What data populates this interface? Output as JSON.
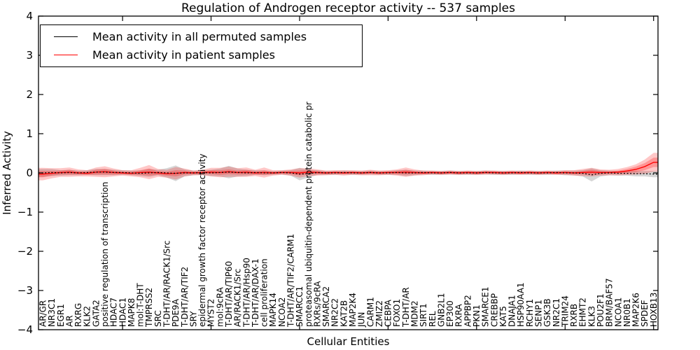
{
  "figure": {
    "title": "Regulation of Androgen receptor activity -- 537 samples",
    "xlabel": "Cellular Entities",
    "ylabel": "Inferred Activity"
  },
  "chart_data": {
    "type": "line",
    "title": "Regulation of Androgen receptor activity -- 537 samples",
    "xlabel": "Cellular Entities",
    "ylabel": "Inferred Activity",
    "ylim": [
      -4,
      4
    ],
    "yticks": [
      -4,
      -3,
      -2,
      -1,
      0,
      1,
      2,
      3,
      4
    ],
    "xticks_every": 10,
    "grid": false,
    "legend_position": "upper left",
    "categories": [
      "AR/GR",
      "NR3C1",
      "EGR1",
      "AR",
      "RXRG",
      "KLK2",
      "GATA2",
      "positive regulation of transcription",
      "HDAC7",
      "HDAC1",
      "MAPK8",
      "mol:T-DHT",
      "TMPRSS2",
      "SRC",
      "T-DHT/AR/RACK1/Src",
      "PDE9A",
      "T-DHT/AR/TIF2",
      "SRY",
      "epidermal growth factor receptor activity",
      "MYST2",
      "mol:9cRA",
      "T-DHT/AR/TIP60",
      "AR/RACK1/Src",
      "T-DHT/AR/Hsp90",
      "T-DHT/AR/DAX-1",
      "cell proliferation",
      "MAPK14",
      "NCOA2",
      "T-DHT/AR/TIF2/CARM1",
      "SMARCC1",
      "proteasomal ubiquitin-dependent protein catabolic pr",
      "RXRs/9cRA",
      "SMARCA2",
      "NR2C2",
      "KAT2B",
      "MAP2K4",
      "JUN",
      "CARM1",
      "ZMIZ2",
      "CEBPA",
      "FOXO1",
      "T-DHT/AR",
      "MDM2",
      "SIRT1",
      "REL",
      "GNB2L1",
      "EP300",
      "RXRA",
      "APPBP2",
      "PKN1",
      "SMARCE1",
      "CREBBP",
      "KAT5",
      "DNAJA1",
      "HSP90AA1",
      "RCHY1",
      "SENP1",
      "GSK3B",
      "NR2C1",
      "TRIM24",
      "RXRB",
      "EHMT2",
      "KLK3",
      "POU2F1",
      "BRM/BAF57",
      "NCOA1",
      "NR0B1",
      "MAP2K6",
      "SPDEF",
      "HOXB13"
    ],
    "series": [
      {
        "name": "Mean activity in all permuted samples",
        "color": "#000000",
        "line_style": "dotted",
        "values": [
          0,
          0.01,
          0,
          0.01,
          0,
          0.01,
          0.02,
          0.02,
          0.01,
          0.01,
          0,
          -0.01,
          0,
          0.01,
          0,
          -0.01,
          0,
          0,
          0.01,
          0,
          0.01,
          0.02,
          0.01,
          0,
          0.01,
          0,
          0,
          0.01,
          0,
          -0.03,
          -0.02,
          0.01,
          0,
          0,
          0.01,
          0,
          0,
          0.01,
          0,
          0,
          0.01,
          0,
          0,
          0.01,
          0,
          0,
          0.01,
          0,
          0,
          0,
          0.01,
          0,
          0,
          0,
          0.01,
          0,
          0,
          0,
          0.01,
          0,
          0,
          -0.01,
          -0.05,
          -0.01,
          0,
          -0.01,
          -0.01,
          -0.02,
          -0.02,
          -0.03
        ]
      },
      {
        "name": "Mean activity in patient samples",
        "color": "#ff0000",
        "line_style": "solid",
        "values": [
          -0.03,
          -0.01,
          0.01,
          0.02,
          0,
          -0.01,
          0.02,
          0.03,
          0.01,
          0,
          -0.01,
          0.01,
          0.02,
          0,
          -0.02,
          -0.01,
          0.01,
          0,
          0.01,
          0.02,
          0.01,
          0.03,
          0.01,
          0.02,
          0,
          0.01,
          0,
          0.01,
          0.01,
          0,
          0.02,
          0.01,
          0,
          0.01,
          0,
          0.01,
          0,
          0.01,
          0,
          0.01,
          0.01,
          0.02,
          0.01,
          0,
          0.01,
          0,
          0.01,
          0,
          0.01,
          0,
          0.01,
          0.01,
          0,
          0.01,
          0,
          0.01,
          0,
          0.01,
          0,
          0.01,
          0,
          0.01,
          0.02,
          0.01,
          0.01,
          0.02,
          0.05,
          0.09,
          0.16,
          0.27
        ]
      }
    ],
    "bands": [
      {
        "name": "permuted-sample-spread",
        "series": 0,
        "color": "rgba(120,120,120,0.30)",
        "halfwidths": [
          0.1,
          0.09,
          0.07,
          0.07,
          0.06,
          0.06,
          0.08,
          0.08,
          0.07,
          0.06,
          0.06,
          0.07,
          0.1,
          0.07,
          0.12,
          0.2,
          0.09,
          0.06,
          0.06,
          0.08,
          0.1,
          0.16,
          0.1,
          0.08,
          0.06,
          0.06,
          0.05,
          0.05,
          0.07,
          0.16,
          0.1,
          0.06,
          0.05,
          0.05,
          0.05,
          0.05,
          0.05,
          0.05,
          0.05,
          0.05,
          0.06,
          0.08,
          0.06,
          0.05,
          0.05,
          0.05,
          0.05,
          0.05,
          0.05,
          0.05,
          0.05,
          0.05,
          0.05,
          0.05,
          0.05,
          0.05,
          0.05,
          0.05,
          0.05,
          0.06,
          0.06,
          0.08,
          0.17,
          0.08,
          0.06,
          0.06,
          0.06,
          0.07,
          0.07,
          0.08
        ]
      },
      {
        "name": "patient-sample-spread-outer",
        "series": 1,
        "color": "rgba(255,0,0,0.22)",
        "halfwidths": [
          0.16,
          0.13,
          0.11,
          0.12,
          0.09,
          0.08,
          0.12,
          0.14,
          0.1,
          0.07,
          0.08,
          0.12,
          0.18,
          0.1,
          0.1,
          0.16,
          0.1,
          0.06,
          0.07,
          0.11,
          0.12,
          0.13,
          0.11,
          0.12,
          0.08,
          0.13,
          0.07,
          0.06,
          0.08,
          0.12,
          0.1,
          0.08,
          0.06,
          0.06,
          0.07,
          0.06,
          0.06,
          0.07,
          0.06,
          0.06,
          0.08,
          0.12,
          0.08,
          0.06,
          0.05,
          0.05,
          0.05,
          0.05,
          0.05,
          0.05,
          0.05,
          0.05,
          0.05,
          0.05,
          0.05,
          0.05,
          0.05,
          0.05,
          0.05,
          0.06,
          0.07,
          0.09,
          0.11,
          0.08,
          0.07,
          0.08,
          0.1,
          0.13,
          0.18,
          0.24
        ]
      },
      {
        "name": "patient-sample-spread-inner",
        "series": 1,
        "color": "rgba(255,0,0,0.25)",
        "halfwidths": [
          0.08,
          0.06,
          0.05,
          0.06,
          0.04,
          0.04,
          0.06,
          0.07,
          0.05,
          0.03,
          0.04,
          0.06,
          0.09,
          0.05,
          0.05,
          0.08,
          0.05,
          0.03,
          0.03,
          0.05,
          0.06,
          0.06,
          0.05,
          0.06,
          0.04,
          0.06,
          0.03,
          0.03,
          0.04,
          0.06,
          0.05,
          0.04,
          0.03,
          0.03,
          0.03,
          0.03,
          0.03,
          0.03,
          0.03,
          0.03,
          0.04,
          0.06,
          0.04,
          0.03,
          0.03,
          0.03,
          0.03,
          0.03,
          0.03,
          0.03,
          0.03,
          0.03,
          0.03,
          0.03,
          0.03,
          0.03,
          0.03,
          0.03,
          0.03,
          0.03,
          0.03,
          0.04,
          0.06,
          0.04,
          0.03,
          0.04,
          0.05,
          0.07,
          0.09,
          0.12
        ]
      }
    ]
  }
}
